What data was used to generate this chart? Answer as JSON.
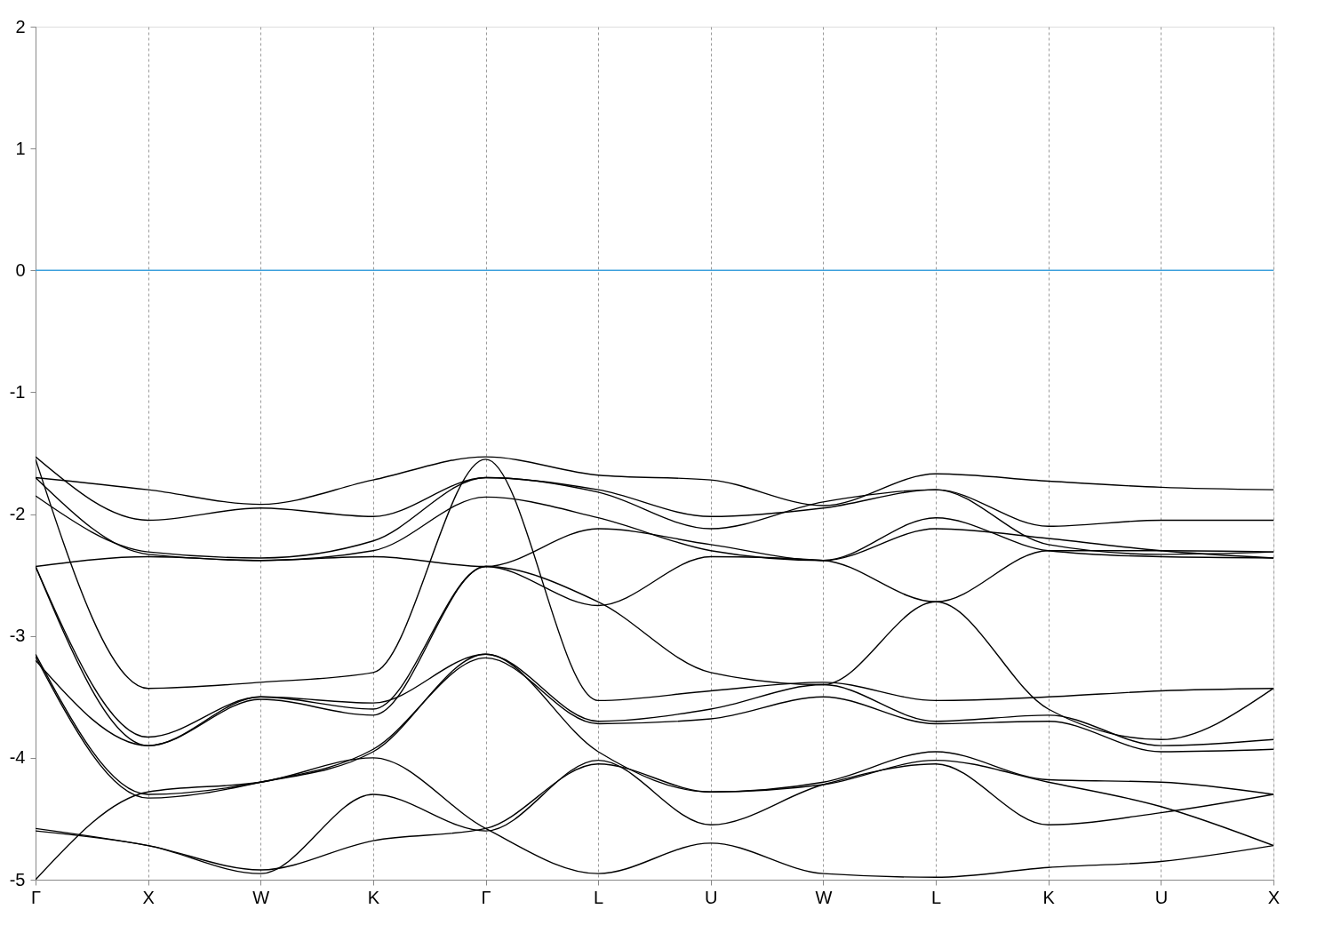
{
  "chart_data": {
    "type": "line",
    "categories": [
      "Γ",
      "X",
      "W",
      "K",
      "Γ",
      "L",
      "U",
      "W",
      "L",
      "K",
      "U",
      "X"
    ],
    "ylim": [
      -5,
      2
    ],
    "yticks": [
      -5,
      -4,
      -3,
      -2,
      -1,
      0,
      1,
      2
    ],
    "grid": "x",
    "ref_lines": [
      {
        "axis": "y",
        "value": 0,
        "color": "#3ca0dc"
      }
    ],
    "series": [
      {
        "color": "#000000",
        "values": [
          -1.7,
          -1.8,
          -1.92,
          -1.72,
          -1.53,
          -1.68,
          -1.72,
          -1.93,
          -1.67,
          -1.73,
          -1.78,
          -1.8
        ]
      },
      {
        "color": "#000000",
        "values": [
          -1.53,
          -2.05,
          -1.95,
          -2.02,
          -1.7,
          -1.8,
          -2.02,
          -1.95,
          -1.8,
          -2.1,
          -2.05,
          -2.05
        ]
      },
      {
        "color": "#000000",
        "values": [
          -1.85,
          -2.31,
          -2.36,
          -2.22,
          -1.7,
          -1.82,
          -2.12,
          -1.9,
          -1.8,
          -2.25,
          -2.33,
          -2.31
        ]
      },
      {
        "color": "#000000",
        "values": [
          -1.7,
          -2.33,
          -2.38,
          -2.3,
          -1.86,
          -2.03,
          -2.3,
          -2.38,
          -2.03,
          -2.3,
          -2.35,
          -2.36
        ]
      },
      {
        "color": "#000000",
        "values": [
          -2.43,
          -2.35,
          -2.38,
          -2.35,
          -2.43,
          -2.12,
          -2.25,
          -2.38,
          -2.12,
          -2.2,
          -2.3,
          -2.36
        ]
      },
      {
        "color": "#000000",
        "values": [
          -1.55,
          -3.43,
          -3.38,
          -3.3,
          -1.55,
          -3.53,
          -3.45,
          -3.38,
          -3.53,
          -3.5,
          -3.45,
          -3.43
        ]
      },
      {
        "color": "#000000",
        "values": [
          -2.43,
          -3.83,
          -3.5,
          -3.6,
          -2.43,
          -2.72,
          -3.3,
          -3.4,
          -2.72,
          -3.6,
          -3.85,
          -3.43
        ]
      },
      {
        "color": "#000000",
        "values": [
          -2.43,
          -3.9,
          -3.52,
          -3.65,
          -2.43,
          -2.75,
          -2.35,
          -2.38,
          -2.72,
          -2.3,
          -2.3,
          -2.31
        ]
      },
      {
        "color": "#000000",
        "values": [
          -3.15,
          -4.3,
          -4.2,
          -3.95,
          -3.15,
          -3.7,
          -3.6,
          -3.4,
          -3.7,
          -3.65,
          -3.9,
          -3.85
        ]
      },
      {
        "color": "#000000",
        "values": [
          -3.17,
          -4.33,
          -4.2,
          -3.93,
          -3.18,
          -3.72,
          -3.68,
          -3.5,
          -3.72,
          -3.7,
          -3.95,
          -3.93
        ]
      },
      {
        "color": "#000000",
        "values": [
          -3.2,
          -3.9,
          -3.5,
          -3.55,
          -3.15,
          -3.95,
          -4.28,
          -4.2,
          -3.95,
          -4.18,
          -4.2,
          -4.3
        ]
      },
      {
        "color": "#000000",
        "values": [
          -4.6,
          -4.72,
          -4.95,
          -4.3,
          -4.6,
          -4.02,
          -4.55,
          -4.22,
          -4.05,
          -4.55,
          -4.45,
          -4.3
        ]
      },
      {
        "color": "#000000",
        "values": [
          -4.58,
          -4.72,
          -4.92,
          -4.68,
          -4.58,
          -4.05,
          -4.28,
          -4.22,
          -4.02,
          -4.2,
          -4.4,
          -4.72
        ]
      },
      {
        "color": "#000000",
        "values": [
          -5.0,
          -4.28,
          -4.2,
          -4.0,
          -4.58,
          -4.95,
          -4.7,
          -4.95,
          -4.98,
          -4.9,
          -4.85,
          -4.72
        ]
      }
    ]
  }
}
